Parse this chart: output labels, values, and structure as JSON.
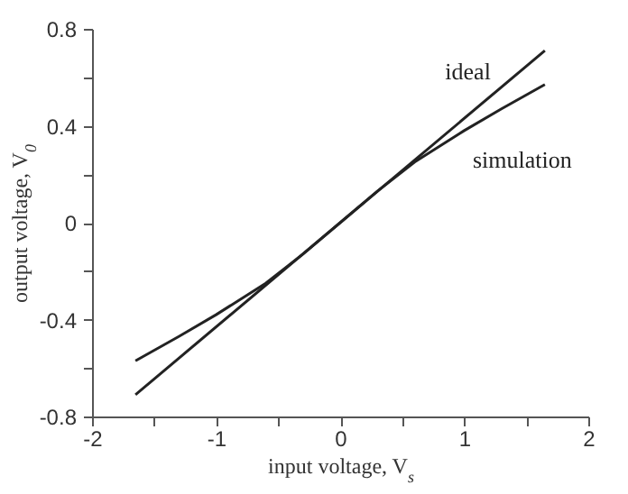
{
  "chart_data": {
    "type": "line",
    "xlabel": "input voltage, V$_{s}$",
    "ylabel": "output voltage, V$_{0}$",
    "xlim": [
      -2,
      2
    ],
    "xticks": [
      -2,
      {
        "value": -1.5,
        "label": null
      },
      -1,
      {
        "value": -0.5,
        "label": null
      },
      0,
      {
        "value": 0.5,
        "label": null
      },
      1,
      {
        "value": 1.5,
        "label": null
      },
      2
    ],
    "ylim": [
      -0.8,
      0.8
    ],
    "yticks": [
      -0.8,
      {
        "value": -0.6,
        "label": null
      },
      -0.4,
      {
        "value": -0.2,
        "label": null
      },
      0,
      {
        "value": 0.2,
        "label": null
      },
      0.4,
      {
        "value": 0.6,
        "label": null
      },
      0.8
    ],
    "grid": false,
    "legend": false,
    "marker": "none",
    "line_style": "solid",
    "series": [
      {
        "name": "ideal",
        "color": "#222222",
        "x": [
          -1.65,
          1.65
        ],
        "values": [
          -0.71,
          0.71
        ]
      },
      {
        "name": "simulation",
        "color": "#222222",
        "x": [
          -1.65,
          -1.3,
          -1,
          -0.6,
          -0.3,
          0,
          0.3,
          0.6,
          1,
          1.3,
          1.65
        ],
        "values": [
          -0.57,
          -0.47,
          -0.38,
          -0.25,
          -0.13,
          0,
          0.13,
          0.25,
          0.38,
          0.47,
          0.57
        ]
      }
    ]
  }
}
